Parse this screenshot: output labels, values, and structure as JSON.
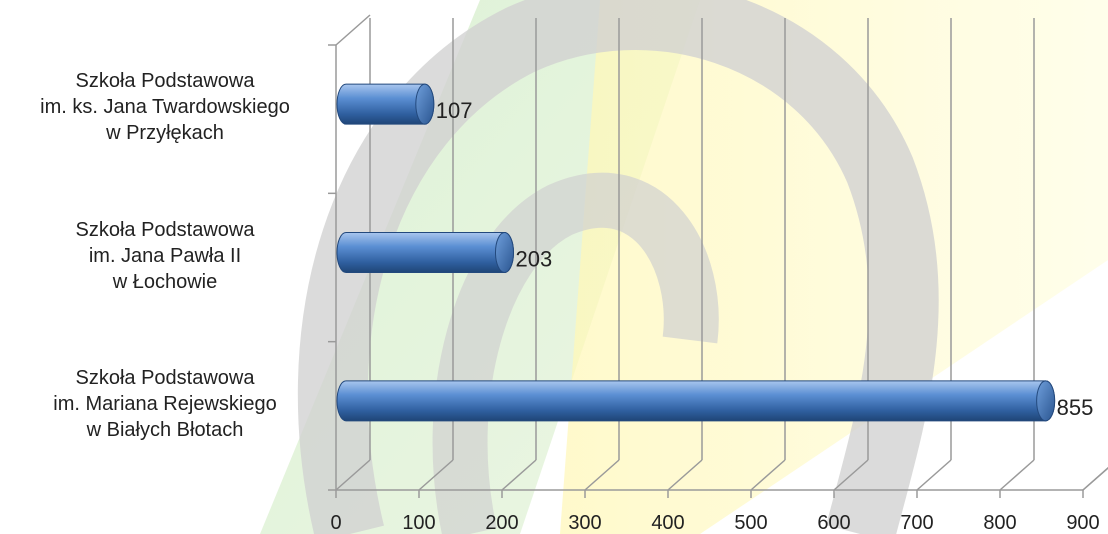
{
  "chart_data": {
    "type": "bar",
    "orientation": "horizontal",
    "style": "3d-cylinder",
    "categories": [
      [
        "Szkoła Podstawowa",
        "im. ks. Jana Twardowskiego",
        "w Przyłękach"
      ],
      [
        "Szkoła Podstawowa",
        "im. Jana Pawła II",
        "w Łochowie"
      ],
      [
        "Szkoła Podstawowa",
        "im. Mariana Rejewskiego",
        "w Białych Błotach"
      ]
    ],
    "values": [
      107,
      203,
      855
    ],
    "data_labels": [
      "107",
      "203",
      "855"
    ],
    "xlim": [
      0,
      900
    ],
    "x_ticks": [
      "0",
      "100",
      "200",
      "300",
      "400",
      "500",
      "600",
      "700",
      "800",
      "900"
    ],
    "grid": true,
    "bar_color": "#3f72b8"
  }
}
